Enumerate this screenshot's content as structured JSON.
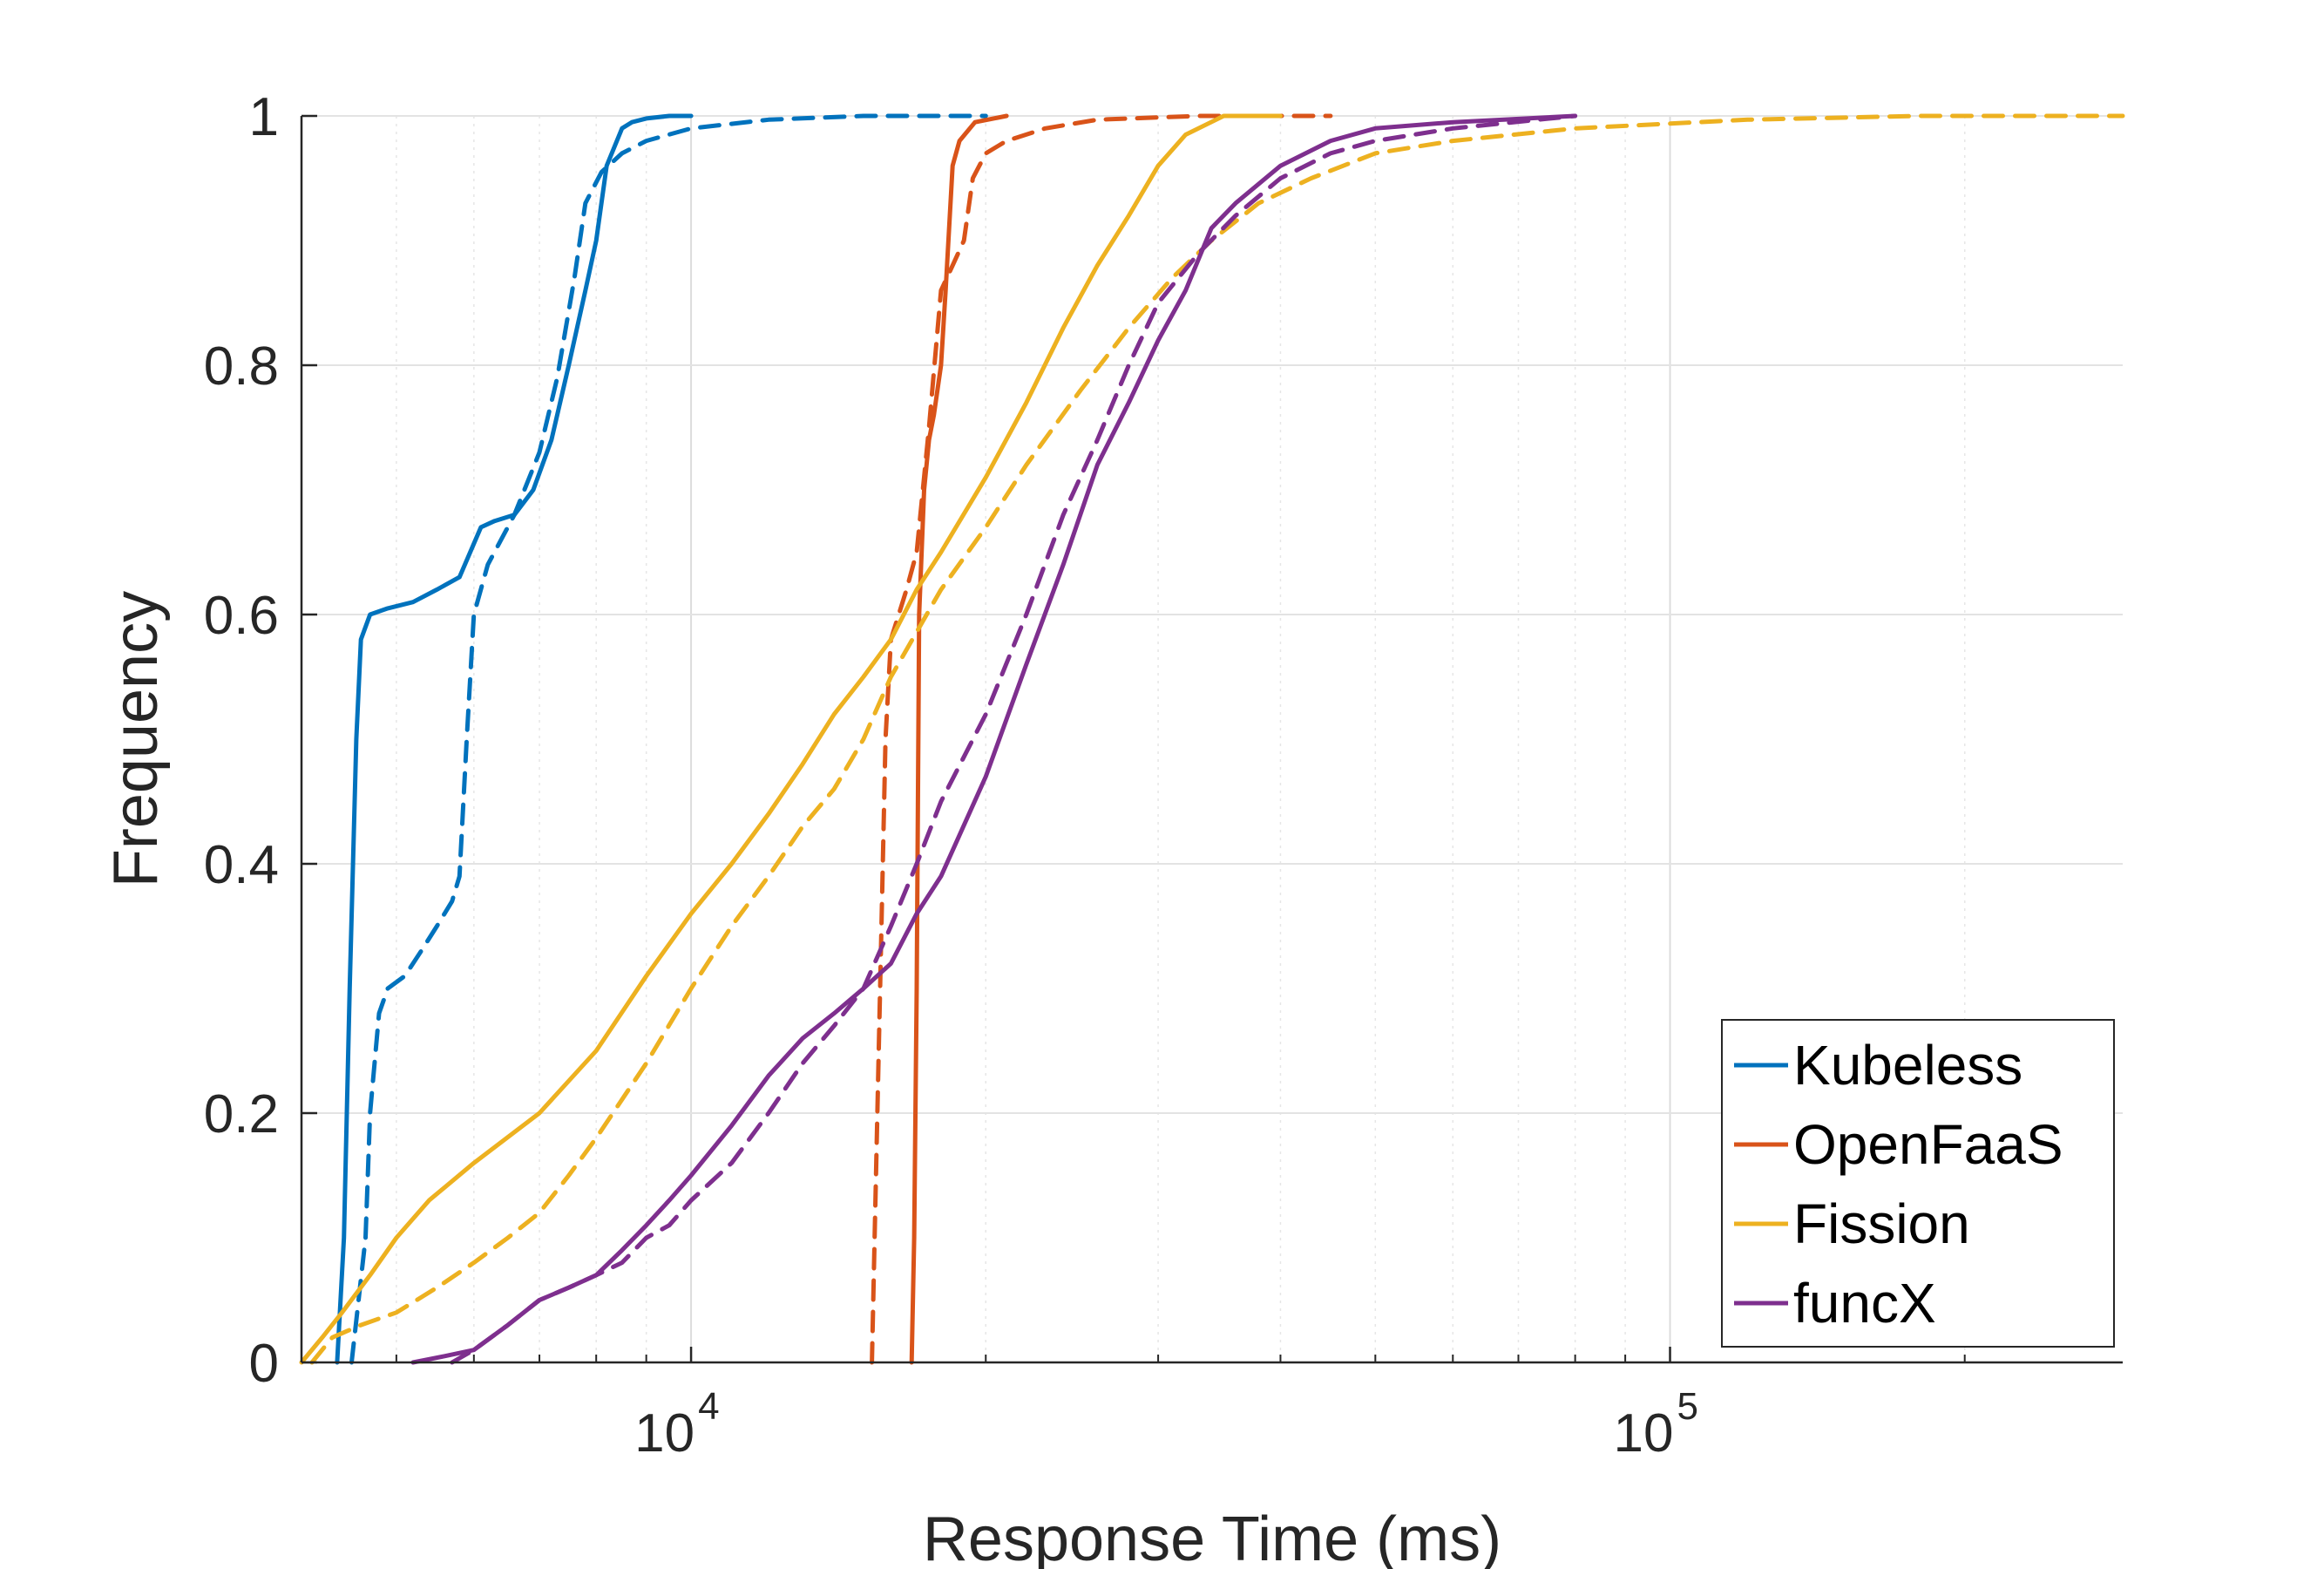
{
  "chart_data": {
    "type": "line",
    "title": "",
    "xlabel": "Response Time (ms)",
    "ylabel": "Frequency",
    "xscale": "log",
    "xlim": [
      4000,
      290000
    ],
    "ylim": [
      0,
      1
    ],
    "grid": true,
    "legend_position": "bottom-right",
    "x_ticks": [
      {
        "value": 10000,
        "base": "10",
        "exp": "4"
      },
      {
        "value": 100000,
        "base": "10",
        "exp": "5"
      }
    ],
    "y_ticks": [
      {
        "value": 0,
        "label": "0"
      },
      {
        "value": 0.2,
        "label": "0.2"
      },
      {
        "value": 0.4,
        "label": "0.4"
      },
      {
        "value": 0.6,
        "label": "0.6"
      },
      {
        "value": 0.8,
        "label": "0.8"
      },
      {
        "value": 1,
        "label": "1"
      }
    ],
    "legend": [
      {
        "name": "Kubeless",
        "color": "#0072BD"
      },
      {
        "name": "OpenFaaS",
        "color": "#D95319"
      },
      {
        "name": "Fission",
        "color": "#EDB120"
      },
      {
        "name": "funcX",
        "color": "#7E2F8E"
      }
    ],
    "series": [
      {
        "name": "Kubeless",
        "style": "solid",
        "color": "#0072BD",
        "x": [
          4350,
          4420,
          4480,
          4550,
          4600,
          4700,
          4900,
          5200,
          5500,
          5800,
          6100,
          6300,
          6600,
          6900,
          7200,
          7500,
          7800,
          8000,
          8200,
          8500,
          8700,
          9000,
          9500,
          10000
        ],
        "y": [
          0,
          0.1,
          0.3,
          0.5,
          0.58,
          0.6,
          0.605,
          0.61,
          0.62,
          0.63,
          0.67,
          0.675,
          0.68,
          0.7,
          0.74,
          0.8,
          0.86,
          0.9,
          0.96,
          0.99,
          0.995,
          0.998,
          1,
          1
        ]
      },
      {
        "name": "Kubeless",
        "style": "dashed",
        "color": "#0072BD",
        "x": [
          4500,
          4650,
          4700,
          4800,
          4900,
          5100,
          5300,
          5500,
          5700,
          5800,
          5900,
          6000,
          6200,
          6600,
          7000,
          7300,
          7600,
          7800,
          8100,
          8500,
          9000,
          10000,
          12000,
          15000,
          20000
        ],
        "y": [
          0,
          0.1,
          0.2,
          0.28,
          0.3,
          0.31,
          0.33,
          0.35,
          0.37,
          0.39,
          0.5,
          0.6,
          0.64,
          0.68,
          0.73,
          0.79,
          0.87,
          0.93,
          0.955,
          0.97,
          0.98,
          0.99,
          0.997,
          1,
          1
        ]
      },
      {
        "name": "OpenFaaS",
        "style": "solid",
        "color": "#D95319",
        "x": [
          16800,
          16900,
          17000,
          17100,
          17300,
          17500,
          17700,
          18000,
          18200,
          18500,
          18800,
          19500,
          21000
        ],
        "y": [
          0,
          0.1,
          0.3,
          0.6,
          0.7,
          0.74,
          0.76,
          0.8,
          0.86,
          0.96,
          0.98,
          0.995,
          1
        ]
      },
      {
        "name": "OpenFaaS",
        "style": "dashed",
        "color": "#D95319",
        "x": [
          15300,
          15400,
          15600,
          15800,
          16000,
          16300,
          16600,
          17000,
          17500,
          18000,
          18500,
          19000,
          19400,
          20000,
          21000,
          23000,
          26000,
          33000,
          45000
        ],
        "y": [
          0,
          0.1,
          0.3,
          0.5,
          0.58,
          0.6,
          0.62,
          0.65,
          0.75,
          0.86,
          0.88,
          0.9,
          0.95,
          0.97,
          0.98,
          0.99,
          0.997,
          1,
          1
        ]
      },
      {
        "name": "Fission",
        "style": "solid",
        "color": "#EDB120",
        "x": [
          4000,
          4200,
          4400,
          4700,
          5000,
          5400,
          6000,
          7000,
          8000,
          9000,
          10000,
          11000,
          12000,
          13000,
          14000,
          15000,
          16000,
          17000,
          18000,
          20000,
          22000,
          24000,
          26000,
          28000,
          30000,
          32000,
          35000,
          40000
        ],
        "y": [
          0,
          0.02,
          0.04,
          0.07,
          0.1,
          0.13,
          0.16,
          0.2,
          0.25,
          0.31,
          0.36,
          0.4,
          0.44,
          0.48,
          0.52,
          0.55,
          0.58,
          0.62,
          0.65,
          0.71,
          0.77,
          0.83,
          0.88,
          0.92,
          0.96,
          0.985,
          1,
          1
        ]
      },
      {
        "name": "Fission",
        "style": "dashed",
        "color": "#EDB120",
        "x": [
          4100,
          4300,
          4600,
          5000,
          5500,
          6000,
          6500,
          7000,
          7500,
          8000,
          9000,
          10000,
          11000,
          12000,
          13000,
          14000,
          15000,
          16000,
          18000,
          20000,
          22000,
          25000,
          28000,
          31000,
          34000,
          38000,
          43000,
          50000,
          60000,
          80000,
          120000,
          180000,
          290000
        ],
        "y": [
          0,
          0.02,
          0.03,
          0.04,
          0.06,
          0.08,
          0.1,
          0.12,
          0.15,
          0.18,
          0.24,
          0.3,
          0.35,
          0.39,
          0.43,
          0.46,
          0.5,
          0.55,
          0.62,
          0.67,
          0.72,
          0.78,
          0.83,
          0.87,
          0.9,
          0.93,
          0.95,
          0.97,
          0.98,
          0.99,
          0.997,
          1,
          1
        ]
      },
      {
        "name": "funcX",
        "style": "solid",
        "color": "#7E2F8E",
        "x": [
          5200,
          5600,
          6000,
          6500,
          7000,
          7500,
          8000,
          8500,
          9000,
          9500,
          10000,
          11000,
          12000,
          13000,
          14000,
          15000,
          16000,
          17000,
          18000,
          20000,
          22000,
          24000,
          26000,
          28000,
          30000,
          32000,
          34000,
          36000,
          40000,
          45000,
          50000,
          60000,
          80000
        ],
        "y": [
          0,
          0.005,
          0.01,
          0.03,
          0.05,
          0.06,
          0.07,
          0.09,
          0.11,
          0.13,
          0.15,
          0.19,
          0.23,
          0.26,
          0.28,
          0.3,
          0.32,
          0.36,
          0.39,
          0.47,
          0.56,
          0.64,
          0.72,
          0.77,
          0.82,
          0.86,
          0.91,
          0.93,
          0.96,
          0.98,
          0.99,
          0.995,
          1
        ]
      },
      {
        "name": "funcX",
        "style": "dashed",
        "color": "#7E2F8E",
        "x": [
          5700,
          6000,
          6500,
          7000,
          7500,
          8000,
          8500,
          9000,
          9500,
          10000,
          11000,
          12000,
          13000,
          14000,
          15000,
          16000,
          17000,
          18000,
          20000,
          22000,
          24000,
          26000,
          28000,
          30000,
          33000,
          36000,
          40000,
          45000,
          50000,
          60000,
          80000
        ],
        "y": [
          0,
          0.01,
          0.03,
          0.05,
          0.06,
          0.07,
          0.08,
          0.1,
          0.11,
          0.13,
          0.16,
          0.2,
          0.24,
          0.27,
          0.3,
          0.35,
          0.4,
          0.45,
          0.52,
          0.6,
          0.68,
          0.74,
          0.8,
          0.85,
          0.89,
          0.92,
          0.95,
          0.97,
          0.98,
          0.99,
          1
        ]
      }
    ]
  }
}
